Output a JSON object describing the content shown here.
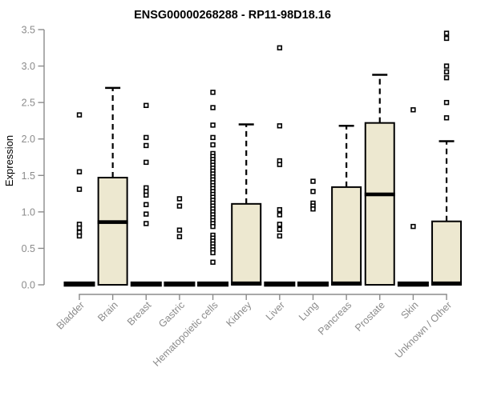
{
  "chart_data": {
    "type": "boxplot",
    "title": "ENSG00000268288 - RP11-98D18.16",
    "ylabel": "Expression",
    "xlabel": "",
    "ylim": [
      0,
      3.5
    ],
    "yticks": [
      0.0,
      0.5,
      1.0,
      1.5,
      2.0,
      2.5,
      3.0,
      3.5
    ],
    "grid": "off",
    "legend": "none",
    "colors": {
      "box_fill": "#EDE8D0",
      "box_stroke": "#000000",
      "axis": "#8B8B8B",
      "title": "#000000",
      "outlier_fill": "#FFFFFF"
    },
    "categories": [
      "Bladder",
      "Brain",
      "Breast",
      "Gastric",
      "Hematopoietic cells",
      "Kidney",
      "Liver",
      "Lung",
      "Pancreas",
      "Prostate",
      "Skin",
      "Unknown / Other"
    ],
    "series": [
      {
        "name": "Bladder",
        "q1": 0,
        "median": 0,
        "q3": 0.02,
        "whisker_low": 0,
        "whisker_high": 0.02,
        "outliers": [
          2.33,
          1.55,
          1.31,
          0.83,
          0.78,
          0.72,
          0.67
        ]
      },
      {
        "name": "Brain",
        "q1": 0,
        "median": 0.86,
        "q3": 1.47,
        "whisker_low": 0,
        "whisker_high": 2.7,
        "outliers": []
      },
      {
        "name": "Breast",
        "q1": 0,
        "median": 0,
        "q3": 0.02,
        "whisker_low": 0,
        "whisker_high": 0.02,
        "outliers": [
          2.46,
          2.02,
          1.91,
          1.68,
          1.33,
          1.28,
          1.23,
          1.1,
          0.97,
          0.84
        ]
      },
      {
        "name": "Gastric",
        "q1": 0,
        "median": 0,
        "q3": 0.02,
        "whisker_low": 0,
        "whisker_high": 0.02,
        "outliers": [
          1.18,
          1.08,
          0.75,
          0.66
        ]
      },
      {
        "name": "Hematopoietic cells",
        "q1": 0,
        "median": 0,
        "q3": 0.02,
        "whisker_low": 0,
        "whisker_high": 0.02,
        "outliers": [
          2.64,
          2.43,
          2.19,
          2.02,
          1.92,
          1.8,
          1.76,
          1.72,
          1.68,
          1.64,
          1.6,
          1.56,
          1.52,
          1.48,
          1.44,
          1.4,
          1.36,
          1.32,
          1.28,
          1.24,
          1.2,
          1.16,
          1.12,
          1.08,
          1.04,
          1.0,
          0.96,
          0.92,
          0.88,
          0.84,
          0.8,
          0.68,
          0.64,
          0.6,
          0.56,
          0.52,
          0.48,
          0.44,
          0.31
        ]
      },
      {
        "name": "Kidney",
        "q1": 0,
        "median": 0.02,
        "q3": 1.11,
        "whisker_low": 0,
        "whisker_high": 2.2,
        "outliers": []
      },
      {
        "name": "Liver",
        "q1": 0,
        "median": 0,
        "q3": 0.02,
        "whisker_low": 0,
        "whisker_high": 0.02,
        "outliers": [
          3.25,
          2.18,
          1.7,
          1.65,
          1.03,
          0.96,
          0.83,
          0.76,
          0.67
        ]
      },
      {
        "name": "Lung",
        "q1": 0,
        "median": 0,
        "q3": 0.02,
        "whisker_low": 0,
        "whisker_high": 0.02,
        "outliers": [
          1.42,
          1.28,
          1.12,
          1.08,
          1.04
        ]
      },
      {
        "name": "Pancreas",
        "q1": 0,
        "median": 0.02,
        "q3": 1.34,
        "whisker_low": 0,
        "whisker_high": 2.18,
        "outliers": []
      },
      {
        "name": "Prostate",
        "q1": 0,
        "median": 1.24,
        "q3": 2.22,
        "whisker_low": 0,
        "whisker_high": 2.88,
        "outliers": []
      },
      {
        "name": "Skin",
        "q1": 0,
        "median": 0,
        "q3": 0.02,
        "whisker_low": 0,
        "whisker_high": 0.02,
        "outliers": [
          2.4,
          0.8
        ]
      },
      {
        "name": "Unknown / Other",
        "q1": 0,
        "median": 0.02,
        "q3": 0.87,
        "whisker_low": 0,
        "whisker_high": 1.97,
        "outliers": [
          3.45,
          3.38,
          3.0,
          2.92,
          2.84,
          2.5,
          2.29
        ]
      }
    ]
  }
}
